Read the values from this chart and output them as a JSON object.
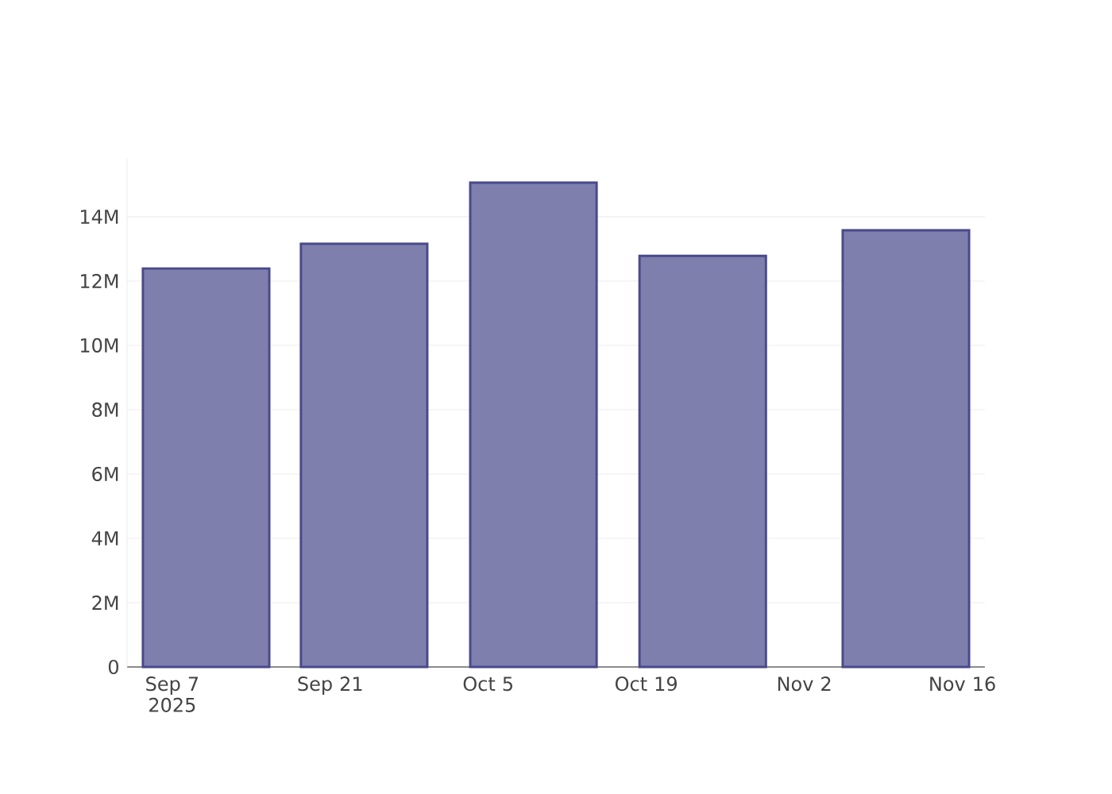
{
  "chart_data": {
    "type": "bar",
    "x": [
      "2025-09-10",
      "2025-09-24",
      "2025-10-09",
      "2025-10-24",
      "2025-11-11"
    ],
    "values": [
      12390000,
      13160000,
      15060000,
      12780000,
      13580000
    ],
    "color": "#7f7fae",
    "xlim": [
      "2025-09-03",
      "2025-11-18"
    ],
    "xticks": [
      {
        "value": "2025-09-07",
        "label": "Sep 7 2025"
      },
      {
        "value": "2025-09-21",
        "label": "Sep 21"
      },
      {
        "value": "2025-10-05",
        "label": "Oct 5"
      },
      {
        "value": "2025-10-19",
        "label": "Oct 19"
      },
      {
        "value": "2025-11-02",
        "label": "Nov 2"
      },
      {
        "value": "2025-11-16",
        "label": "Nov 16"
      }
    ],
    "ylim": [
      0,
      15800000
    ],
    "yticks": [
      0,
      {
        "value": 2000000,
        "label": "2M"
      },
      {
        "value": 4000000,
        "label": "4M"
      },
      {
        "value": 6000000,
        "label": "6M"
      },
      {
        "value": 8000000,
        "label": "8M"
      },
      {
        "value": 10000000,
        "label": "10M"
      },
      {
        "value": 12000000,
        "label": "12M"
      },
      {
        "value": 14000000,
        "label": "14M"
      }
    ],
    "grid": "y"
  }
}
